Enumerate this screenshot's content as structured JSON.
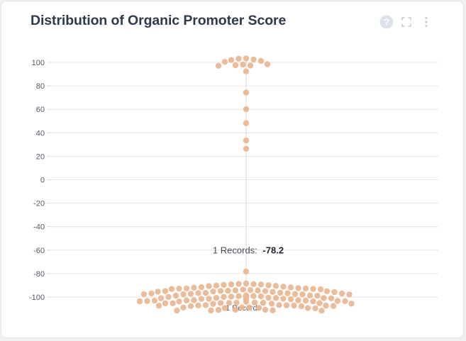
{
  "header": {
    "title": "Distribution of Organic Promoter Score"
  },
  "toolbar": {
    "icons": [
      "help-circle-icon",
      "fullscreen-icon",
      "more-vertical-icon"
    ],
    "icon_color": "#c9cdd5",
    "help_bg": "#dce1ea"
  },
  "colors": {
    "dot": "#eab893",
    "grid": "#e6e6e6",
    "axis_line": "#d9d9d9"
  },
  "chart_data": {
    "type": "scatter",
    "subtype": "beeswarm",
    "title": "Distribution of Organic Promoter Score",
    "xlabel": "",
    "ylabel": "",
    "ylim": [
      -110,
      110
    ],
    "yticks": [
      100,
      80,
      60,
      40,
      20,
      0,
      -20,
      -40,
      -60,
      -80,
      -100
    ],
    "grid": true,
    "legend": "none",
    "tooltip": {
      "label": "1 Records:",
      "value": "-78.2"
    },
    "bottom_label": "1 Records",
    "values": [
      101.2,
      102.0,
      103.1,
      102.5,
      103.3,
      100.4,
      97.3,
      98.1,
      97.6,
      97.1,
      98.4,
      92.3,
      74.3,
      60.1,
      48.2,
      33.5,
      26.4,
      -78.2,
      -88.5,
      -89.0,
      -90.0,
      -89.2,
      -90.2,
      -89.6,
      -88.8,
      -90.5,
      -89.3,
      -90.7,
      -91.6,
      -92.4,
      -92.9,
      -93.2,
      -93.1,
      -91.8,
      -92.7,
      -93.4,
      -91.2,
      -92.1,
      -93.6,
      -92.6,
      -94.3,
      -95.0,
      -95.3,
      -94.6,
      -95.8,
      -94.1,
      -95.6,
      -94.8,
      -95.1,
      -94.4,
      -95.4,
      -94.9,
      -96.6,
      -97.2,
      -97.7,
      -96.9,
      -97.5,
      -96.4,
      -97.8,
      -97.0,
      -96.8,
      -97.4,
      -96.5,
      -97.6,
      -98.8,
      -99.3,
      -99.8,
      -98.9,
      -99.6,
      -99.1,
      -98.7,
      -99.9,
      -99.4,
      -98.6,
      -99.7,
      -99.2,
      -99.5,
      -99.0,
      -100.8,
      -101.3,
      -101.7,
      -100.9,
      -101.5,
      -101.1,
      -100.7,
      -101.8,
      -101.2,
      -100.6,
      -101.6,
      -101.0,
      -101.4,
      -102.9,
      -103.4,
      -103.9,
      -103.1,
      -103.6,
      -102.8,
      -103.8,
      -103.3,
      -102.7,
      -103.5,
      -103.0,
      -103.7,
      -104.9,
      -105.4,
      -105.8,
      -105.1,
      -105.6,
      -104.8,
      -105.3,
      -105.0,
      -105.7,
      -104.7,
      -105.2,
      -106.9,
      -107.4,
      -107.8,
      -107.1,
      -107.6,
      -106.8,
      -107.3,
      -107.0,
      -107.7,
      -107.2,
      -108.9,
      -109.4,
      -109.2,
      -108.8,
      -109.6,
      -109.0,
      -109.3,
      -110.8,
      -111.3,
      -111.6,
      -111.0,
      -111.4,
      -110.9,
      -111.5
    ]
  }
}
